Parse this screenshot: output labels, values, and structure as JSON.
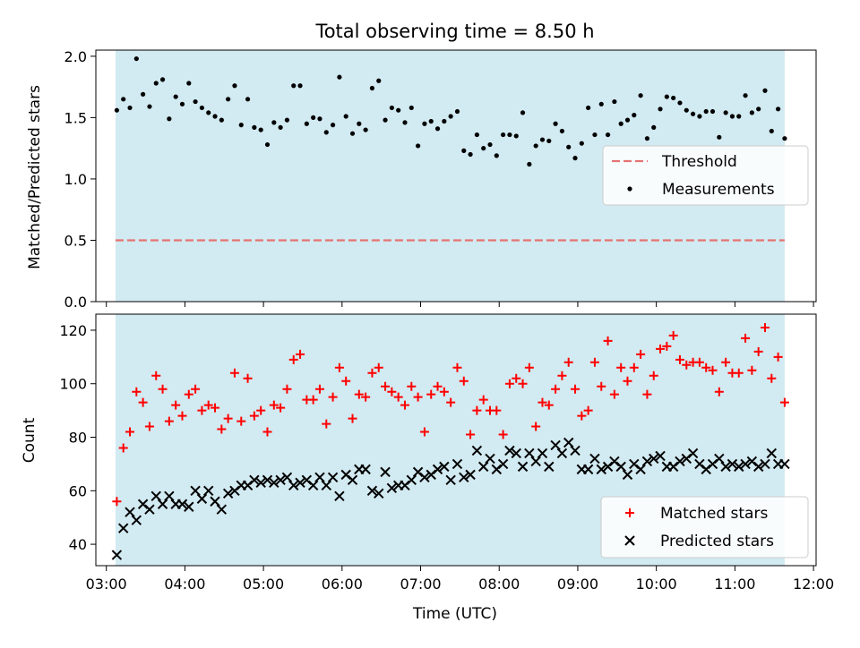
{
  "chart_data": [
    {
      "type": "scatter",
      "title": "Total observing time = 8.50 h",
      "xlabel": "",
      "ylabel": "Matched/Predicted stars",
      "xlim": [
        "02:52",
        "12:02"
      ],
      "ylim": [
        0,
        2.05
      ],
      "yticks": [
        0.0,
        0.5,
        1.0,
        1.5,
        2.0
      ],
      "ytick_labels": [
        "0.0",
        "0.5",
        "1.0",
        "1.5",
        "2.0"
      ],
      "shaded_span": [
        "03:07",
        "11:38"
      ],
      "threshold": 0.5,
      "legend": "center-right",
      "legend_entries": [
        "Threshold",
        "Measurements"
      ],
      "colors": {
        "shade": "#add8e6",
        "threshold": "#e57373",
        "points": "#000000"
      },
      "series": [
        {
          "name": "Measurements",
          "x": [
            "03:08",
            "03:13",
            "03:18",
            "03:23",
            "03:28",
            "03:33",
            "03:38",
            "03:43",
            "03:48",
            "03:53",
            "03:58",
            "04:03",
            "04:08",
            "04:13",
            "04:18",
            "04:23",
            "04:28",
            "04:33",
            "04:38",
            "04:43",
            "04:48",
            "04:53",
            "04:58",
            "05:03",
            "05:08",
            "05:13",
            "05:18",
            "05:23",
            "05:28",
            "05:33",
            "05:38",
            "05:43",
            "05:48",
            "05:53",
            "05:58",
            "06:03",
            "06:08",
            "06:13",
            "06:18",
            "06:23",
            "06:28",
            "06:33",
            "06:38",
            "06:43",
            "06:48",
            "06:53",
            "06:58",
            "07:03",
            "07:08",
            "07:13",
            "07:18",
            "07:23",
            "07:28",
            "07:33",
            "07:38",
            "07:43",
            "07:48",
            "07:53",
            "07:58",
            "08:03",
            "08:08",
            "08:13",
            "08:18",
            "08:23",
            "08:28",
            "08:33",
            "08:38",
            "08:43",
            "08:48",
            "08:53",
            "08:58",
            "09:03",
            "09:08",
            "09:13",
            "09:18",
            "09:23",
            "09:28",
            "09:33",
            "09:38",
            "09:43",
            "09:48",
            "09:53",
            "09:58",
            "10:03",
            "10:08",
            "10:13",
            "10:18",
            "10:23",
            "10:28",
            "10:33",
            "10:38",
            "10:43",
            "10:48",
            "10:53",
            "10:58",
            "11:03",
            "11:08",
            "11:13",
            "11:18",
            "11:23",
            "11:28",
            "11:33",
            "11:38"
          ],
          "y": [
            1.56,
            1.65,
            1.58,
            1.98,
            1.69,
            1.59,
            1.78,
            1.81,
            1.49,
            1.67,
            1.61,
            1.78,
            1.63,
            1.58,
            1.54,
            1.51,
            1.48,
            1.65,
            1.76,
            1.44,
            1.65,
            1.42,
            1.4,
            1.28,
            1.46,
            1.42,
            1.48,
            1.76,
            1.76,
            1.45,
            1.5,
            1.49,
            1.38,
            1.44,
            1.83,
            1.51,
            1.37,
            1.45,
            1.4,
            1.74,
            1.8,
            1.48,
            1.58,
            1.56,
            1.46,
            1.58,
            1.27,
            1.45,
            1.47,
            1.41,
            1.47,
            1.51,
            1.55,
            1.23,
            1.2,
            1.36,
            1.25,
            1.28,
            1.19,
            1.36,
            1.36,
            1.35,
            1.54,
            1.12,
            1.27,
            1.32,
            1.31,
            1.45,
            1.39,
            1.26,
            1.17,
            1.29,
            1.58,
            1.36,
            1.61,
            1.36,
            1.63,
            1.45,
            1.48,
            1.52,
            1.68,
            1.33,
            1.42,
            1.57,
            1.67,
            1.66,
            1.62,
            1.56,
            1.53,
            1.51,
            1.55,
            1.55,
            1.34,
            1.54,
            1.51,
            1.51,
            1.68,
            1.54,
            1.57,
            1.72,
            1.39,
            1.57,
            1.33
          ]
        }
      ]
    },
    {
      "type": "scatter",
      "title": "",
      "xlabel": "Time (UTC)",
      "ylabel": "Count",
      "xlim": [
        "02:52",
        "12:02"
      ],
      "ylim": [
        32,
        126
      ],
      "yticks": [
        40,
        60,
        80,
        100,
        120
      ],
      "ytick_labels": [
        "40",
        "60",
        "80",
        "100",
        "120"
      ],
      "xticks": [
        "03:00",
        "04:00",
        "05:00",
        "06:00",
        "07:00",
        "08:00",
        "09:00",
        "10:00",
        "11:00",
        "12:00"
      ],
      "shaded_span": [
        "03:07",
        "11:38"
      ],
      "legend": "bottom-right",
      "legend_entries": [
        "Matched stars",
        "Predicted stars"
      ],
      "colors": {
        "shade": "#add8e6",
        "matched": "#ff0000",
        "predicted": "#000000"
      },
      "series": [
        {
          "name": "Matched stars",
          "marker": "plus",
          "x": [
            "03:08",
            "03:13",
            "03:18",
            "03:23",
            "03:28",
            "03:33",
            "03:38",
            "03:43",
            "03:48",
            "03:53",
            "03:58",
            "04:03",
            "04:08",
            "04:13",
            "04:18",
            "04:23",
            "04:28",
            "04:33",
            "04:38",
            "04:43",
            "04:48",
            "04:53",
            "04:58",
            "05:03",
            "05:08",
            "05:13",
            "05:18",
            "05:23",
            "05:28",
            "05:33",
            "05:38",
            "05:43",
            "05:48",
            "05:53",
            "05:58",
            "06:03",
            "06:08",
            "06:13",
            "06:18",
            "06:23",
            "06:28",
            "06:33",
            "06:38",
            "06:43",
            "06:48",
            "06:53",
            "06:58",
            "07:03",
            "07:08",
            "07:13",
            "07:18",
            "07:23",
            "07:28",
            "07:33",
            "07:38",
            "07:43",
            "07:48",
            "07:53",
            "07:58",
            "08:03",
            "08:08",
            "08:13",
            "08:18",
            "08:23",
            "08:28",
            "08:33",
            "08:38",
            "08:43",
            "08:48",
            "08:53",
            "08:58",
            "09:03",
            "09:08",
            "09:13",
            "09:18",
            "09:23",
            "09:28",
            "09:33",
            "09:38",
            "09:43",
            "09:48",
            "09:53",
            "09:58",
            "10:03",
            "10:08",
            "10:13",
            "10:18",
            "10:23",
            "10:28",
            "10:33",
            "10:38",
            "10:43",
            "10:48",
            "10:53",
            "10:58",
            "11:03",
            "11:08",
            "11:13",
            "11:18",
            "11:23",
            "11:28",
            "11:33",
            "11:38"
          ],
          "y": [
            56,
            76,
            82,
            97,
            93,
            84,
            103,
            98,
            86,
            92,
            88,
            96,
            98,
            90,
            92,
            91,
            83,
            87,
            104,
            86,
            102,
            88,
            90,
            82,
            92,
            91,
            98,
            109,
            111,
            94,
            94,
            98,
            85,
            95,
            106,
            101,
            87,
            96,
            95,
            104,
            106,
            99,
            97,
            95,
            92,
            99,
            95,
            82,
            96,
            99,
            97,
            93,
            106,
            101,
            81,
            90,
            94,
            90,
            90,
            81,
            100,
            102,
            100,
            106,
            84,
            93,
            92,
            98,
            103,
            108,
            98,
            88,
            90,
            108,
            99,
            116,
            96,
            106,
            101,
            106,
            111,
            96,
            103,
            113,
            114,
            118,
            109,
            107,
            108,
            108,
            106,
            105,
            97,
            108,
            104,
            104,
            117,
            105,
            112,
            121,
            102,
            110,
            93
          ]
        },
        {
          "name": "Predicted stars",
          "marker": "x",
          "x": [
            "03:08",
            "03:13",
            "03:18",
            "03:23",
            "03:28",
            "03:33",
            "03:38",
            "03:43",
            "03:48",
            "03:53",
            "03:58",
            "04:03",
            "04:08",
            "04:13",
            "04:18",
            "04:23",
            "04:28",
            "04:33",
            "04:38",
            "04:43",
            "04:48",
            "04:53",
            "04:58",
            "05:03",
            "05:08",
            "05:13",
            "05:18",
            "05:23",
            "05:28",
            "05:33",
            "05:38",
            "05:43",
            "05:48",
            "05:53",
            "05:58",
            "06:03",
            "06:08",
            "06:13",
            "06:18",
            "06:23",
            "06:28",
            "06:33",
            "06:38",
            "06:43",
            "06:48",
            "06:53",
            "06:58",
            "07:03",
            "07:08",
            "07:13",
            "07:18",
            "07:23",
            "07:28",
            "07:33",
            "07:38",
            "07:43",
            "07:48",
            "07:53",
            "07:58",
            "08:03",
            "08:08",
            "08:13",
            "08:18",
            "08:23",
            "08:28",
            "08:33",
            "08:38",
            "08:43",
            "08:48",
            "08:53",
            "08:58",
            "09:03",
            "09:08",
            "09:13",
            "09:18",
            "09:23",
            "09:28",
            "09:33",
            "09:38",
            "09:43",
            "09:48",
            "09:53",
            "09:58",
            "10:03",
            "10:08",
            "10:13",
            "10:18",
            "10:23",
            "10:28",
            "10:33",
            "10:38",
            "10:43",
            "10:48",
            "10:53",
            "10:58",
            "11:03",
            "11:08",
            "11:13",
            "11:18",
            "11:23",
            "11:28",
            "11:33",
            "11:38"
          ],
          "y": [
            36,
            46,
            52,
            49,
            55,
            53,
            58,
            55,
            58,
            55,
            55,
            54,
            60,
            57,
            60,
            56,
            53,
            59,
            60,
            62,
            62,
            64,
            63,
            64,
            63,
            64,
            65,
            62,
            63,
            64,
            62,
            65,
            62,
            65,
            58,
            66,
            64,
            68,
            68,
            60,
            59,
            67,
            61,
            62,
            62,
            64,
            67,
            65,
            66,
            68,
            69,
            64,
            70,
            65,
            66,
            75,
            69,
            72,
            68,
            70,
            75,
            74,
            69,
            74,
            71,
            74,
            69,
            77,
            74,
            78,
            75,
            68,
            68,
            72,
            68,
            69,
            71,
            69,
            66,
            70,
            68,
            71,
            72,
            73,
            69,
            69,
            71,
            72,
            74,
            70,
            68,
            70,
            72,
            69,
            70,
            69,
            70,
            71,
            69,
            70,
            74,
            70,
            70
          ]
        }
      ]
    }
  ]
}
